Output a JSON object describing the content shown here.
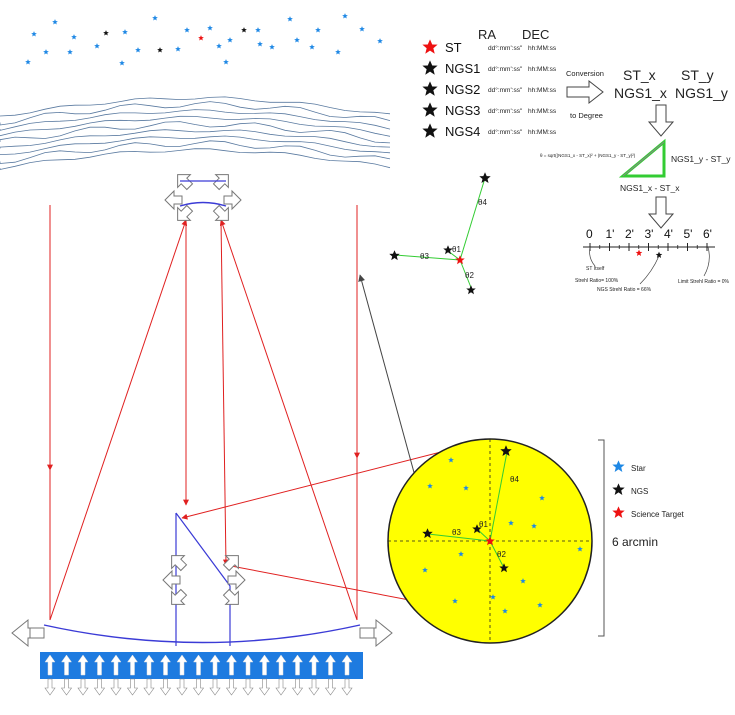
{
  "header": {
    "ra": "RA",
    "dec": "DEC"
  },
  "targets": [
    {
      "name": "ST",
      "ra": "dd°:mm':ss\"",
      "dec": "hh:MM:ss",
      "color": "#ee1111"
    },
    {
      "name": "NGS1",
      "ra": "dd°:mm':ss\"",
      "dec": "hh:MM:ss",
      "color": "#111111"
    },
    {
      "name": "NGS2",
      "ra": "dd°:mm':ss\"",
      "dec": "hh:MM:ss",
      "color": "#111111"
    },
    {
      "name": "NGS3",
      "ra": "dd°:mm':ss\"",
      "dec": "hh:MM:ss",
      "color": "#111111"
    },
    {
      "name": "NGS4",
      "ra": "dd°:mm':ss\"",
      "dec": "hh:MM:ss",
      "color": "#111111"
    }
  ],
  "conversion": {
    "line1": "Conversion",
    "line2": "to Degree"
  },
  "coords": {
    "st_x": "ST_x",
    "st_y": "ST_y",
    "ngs_x": "NGS1_x",
    "ngs_y": "NGS1_y"
  },
  "triangle": {
    "formula": "θ = sqrt((NGS1_x - ST_x)² + (NGS1_y - ST_y)²)",
    "vertical_label": "NGS1_y - ST_y",
    "horizontal_label": "NGS1_x - ST_x"
  },
  "scale": {
    "ticks": [
      "0",
      "1'",
      "2'",
      "3'",
      "4'",
      "5'",
      "6'"
    ],
    "annotations": [
      "ST Itself",
      "Strehl Ratio= 100%",
      "NGS Strehl Ratio = 66%",
      "Limit Strehl Ratio = 0%"
    ]
  },
  "angles": [
    "θ4",
    "θ1",
    "θ3",
    "θ2"
  ],
  "field": {
    "legend": [
      {
        "label": "Star",
        "color": "#1e88e5"
      },
      {
        "label": "NGS",
        "color": "#111111"
      },
      {
        "label": "Science Target",
        "color": "#ee1111"
      }
    ],
    "fov_label": "6 arcmin",
    "fill": "#ffff00"
  },
  "colors": {
    "star": "#1e88e5",
    "ngs": "#111111",
    "target": "#ee1111",
    "ray": "#e02020",
    "mirror": "#3b3bd6",
    "guide": "#33cc33",
    "actuator": "#1e7be0"
  }
}
